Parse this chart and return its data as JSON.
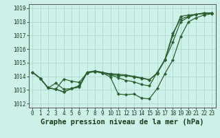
{
  "title": "Graphe pression niveau de la mer (hPa)",
  "bg_color": "#cdf0e8",
  "grid_color": "#b0d8cc",
  "line_color": "#2a6030",
  "marker_color": "#2a6030",
  "xlim": [
    -0.5,
    23.5
  ],
  "ylim": [
    1011.7,
    1019.3
  ],
  "yticks": [
    1012,
    1013,
    1014,
    1015,
    1016,
    1017,
    1018,
    1019
  ],
  "xticks": [
    0,
    1,
    2,
    3,
    4,
    5,
    6,
    7,
    8,
    9,
    10,
    11,
    12,
    13,
    14,
    15,
    16,
    17,
    18,
    19,
    20,
    21,
    22,
    23
  ],
  "lines": [
    [
      1014.3,
      1013.85,
      1013.15,
      1013.05,
      1013.8,
      1013.65,
      1013.55,
      1014.25,
      1014.35,
      1014.25,
      1014.2,
      1014.15,
      1014.1,
      1014.0,
      1013.9,
      1013.75,
      1014.2,
      1015.2,
      1017.0,
      1018.4,
      1018.5,
      1018.55,
      1018.6,
      1018.65
    ],
    [
      1014.3,
      1013.85,
      1013.15,
      1013.05,
      1012.85,
      1013.1,
      1013.2,
      1014.25,
      1014.35,
      1014.25,
      1013.95,
      1012.7,
      1012.65,
      1012.7,
      1012.4,
      1012.35,
      1013.1,
      1014.2,
      1015.2,
      1016.9,
      1018.0,
      1018.3,
      1018.5,
      1018.6
    ],
    [
      1014.3,
      1013.85,
      1013.15,
      1013.05,
      1012.85,
      1013.1,
      1013.3,
      1014.3,
      1014.35,
      1014.25,
      1014.1,
      1013.9,
      1013.7,
      1013.6,
      1013.4,
      1013.3,
      1014.3,
      1015.2,
      1016.5,
      1018.0,
      1018.35,
      1018.55,
      1018.65,
      1018.65
    ],
    [
      1014.3,
      1013.85,
      1013.15,
      1013.5,
      1013.05,
      1013.1,
      1013.3,
      1014.3,
      1014.4,
      1014.3,
      1014.15,
      1014.05,
      1014.05,
      1013.95,
      1013.85,
      1013.75,
      1014.25,
      1015.25,
      1017.15,
      1018.2,
      1018.4,
      1018.55,
      1018.65,
      1018.65
    ]
  ],
  "title_fontsize": 7.5,
  "tick_fontsize": 5.5
}
